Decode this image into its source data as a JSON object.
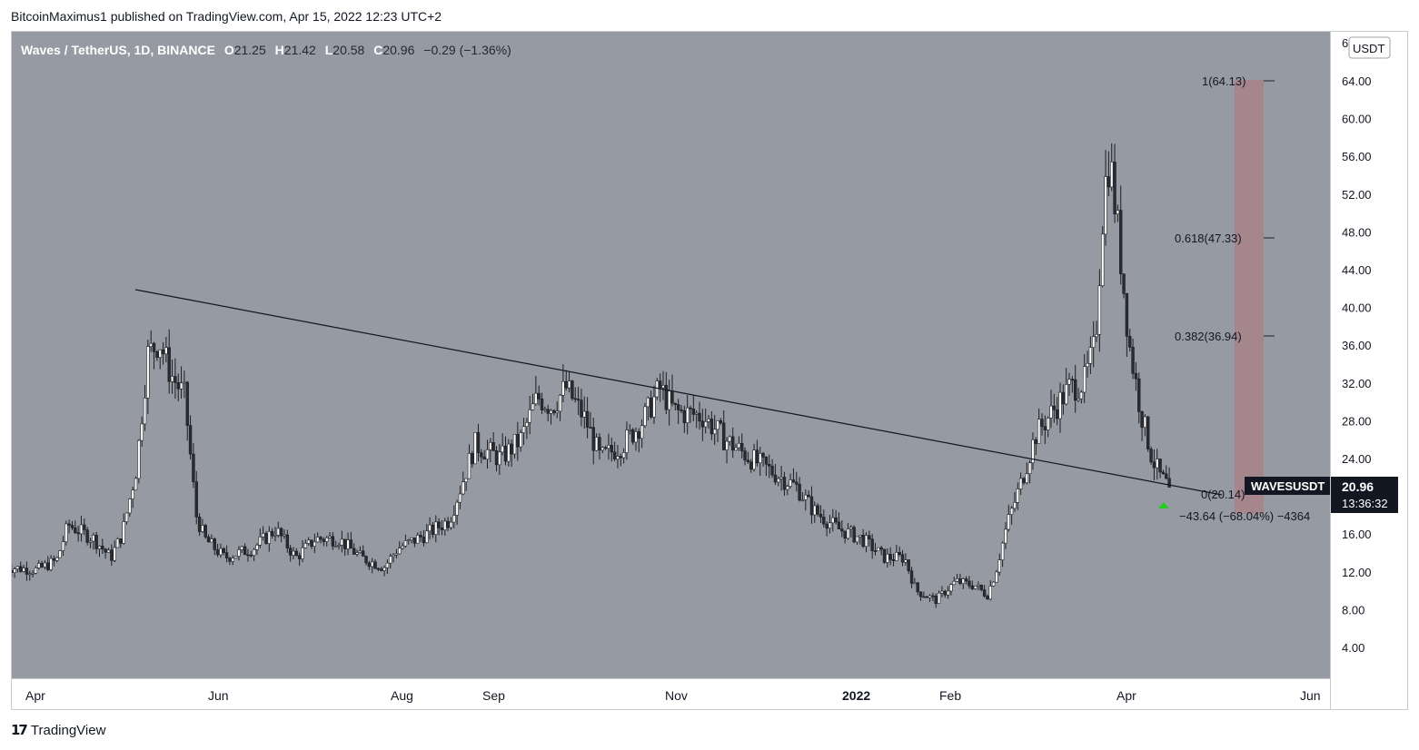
{
  "header": {
    "published_text": "BitcoinMaximus1 published on TradingView.com, Apr 15, 2022 12:23 UTC+2"
  },
  "footer": {
    "brand": "TradingView"
  },
  "legend": {
    "symbol": "Waves / TetherUS, 1D, BINANCE",
    "o_label": "O",
    "o_value": "21.25",
    "h_label": "H",
    "h_value": "21.42",
    "l_label": "L",
    "l_value": "20.58",
    "c_label": "C",
    "c_value": "20.96",
    "change": "−0.29 (−1.36%)"
  },
  "price_scale": {
    "currency": "USDT",
    "top_partial": "6",
    "ticks": [
      "64.00",
      "60.00",
      "56.00",
      "52.00",
      "48.00",
      "44.00",
      "40.00",
      "36.00",
      "32.00",
      "28.00",
      "24.00",
      "20.00",
      "16.00",
      "12.00",
      "8.00",
      "4.00"
    ]
  },
  "time_axis": {
    "ticks": [
      "Apr",
      "Jun",
      "Aug",
      "Sep",
      "Nov",
      "2022",
      "Feb",
      "Apr",
      "Jun"
    ]
  },
  "current_price": {
    "label": "WAVESUSDT",
    "value": "20.96",
    "countdown": "13:36:32"
  },
  "fib_labels": [
    "1(64.13)",
    "0.618(47.33)",
    "0.382(36.94)",
    "0(20.14)"
  ],
  "measure_label": "−43.64 (−68.04%) −4364",
  "colors": {
    "chart_bg": "#969aa3",
    "candle_body": "#ffffff",
    "candle_wick": "#1e1f24",
    "trendline": "#131722",
    "target_box": "#a6858c",
    "arrow": "#22cc22",
    "price_tag_bg": "#131722"
  },
  "chart_data": {
    "type": "candlestick",
    "title": "Waves / TetherUS, 1D, BINANCE",
    "ylim": [
      0,
      68
    ],
    "grid": false,
    "close_path": [
      [
        "2021-03-25",
        12.5
      ],
      [
        "2021-04-05",
        12.2
      ],
      [
        "2021-04-12",
        13.2
      ],
      [
        "2021-04-16",
        17.0
      ],
      [
        "2021-04-25",
        15.5
      ],
      [
        "2021-05-01",
        13.5
      ],
      [
        "2021-05-05",
        16.0
      ],
      [
        "2021-05-10",
        23.0
      ],
      [
        "2021-05-14",
        35.0
      ],
      [
        "2021-05-18",
        36.5
      ],
      [
        "2021-05-22",
        33.0
      ],
      [
        "2021-05-27",
        30.5
      ],
      [
        "2021-05-31",
        18.0
      ],
      [
        "2021-06-03",
        15.5
      ],
      [
        "2021-06-10",
        13.5
      ],
      [
        "2021-06-20",
        14.5
      ],
      [
        "2021-06-28",
        16.5
      ],
      [
        "2021-07-05",
        13.5
      ],
      [
        "2021-07-12",
        15.5
      ],
      [
        "2021-07-20",
        15.5
      ],
      [
        "2021-07-28",
        13.5
      ],
      [
        "2021-08-05",
        12.5
      ],
      [
        "2021-08-10",
        14.5
      ],
      [
        "2021-08-20",
        16.0
      ],
      [
        "2021-08-28",
        17.5
      ],
      [
        "2021-09-01",
        21.0
      ],
      [
        "2021-09-06",
        25.5
      ],
      [
        "2021-09-15",
        24.0
      ],
      [
        "2021-09-22",
        26.0
      ],
      [
        "2021-09-28",
        30.5
      ],
      [
        "2021-10-03",
        29.5
      ],
      [
        "2021-10-08",
        31.5
      ],
      [
        "2021-10-15",
        28.0
      ],
      [
        "2021-10-20",
        24.0
      ],
      [
        "2021-10-28",
        25.5
      ],
      [
        "2021-11-04",
        28.0
      ],
      [
        "2021-11-10",
        31.5
      ],
      [
        "2021-11-15",
        29.0
      ],
      [
        "2021-11-25",
        28.5
      ],
      [
        "2021-12-03",
        26.0
      ],
      [
        "2021-12-12",
        24.0
      ],
      [
        "2021-12-20",
        22.5
      ],
      [
        "2021-12-28",
        21.0
      ],
      [
        "2022-01-03",
        18.5
      ],
      [
        "2022-01-12",
        16.5
      ],
      [
        "2022-01-20",
        15.5
      ],
      [
        "2022-01-28",
        13.5
      ],
      [
        "2022-02-04",
        13.5
      ],
      [
        "2022-02-08",
        10.0
      ],
      [
        "2022-02-15",
        9.0
      ],
      [
        "2022-02-22",
        11.0
      ],
      [
        "2022-03-01",
        10.5
      ],
      [
        "2022-03-05",
        9.5
      ],
      [
        "2022-03-08",
        12.0
      ],
      [
        "2022-03-12",
        17.0
      ],
      [
        "2022-03-17",
        21.5
      ],
      [
        "2022-03-22",
        26.5
      ],
      [
        "2022-03-28",
        29.0
      ],
      [
        "2022-04-03",
        31.5
      ],
      [
        "2022-04-08",
        32.0
      ],
      [
        "2022-04-12",
        36.0
      ],
      [
        "2022-04-15",
        52.0
      ],
      [
        "2022-04-17",
        56.0
      ],
      [
        "2022-04-20",
        48.0
      ],
      [
        "2022-04-24",
        36.0
      ],
      [
        "2022-04-28",
        29.0
      ],
      [
        "2022-05-02",
        24.0
      ],
      [
        "2022-05-05",
        22.0
      ],
      [
        "2022-05-08",
        20.96
      ]
    ],
    "trendline": [
      [
        "2021-05-15",
        42.0
      ],
      [
        "2022-05-20",
        19.5
      ]
    ],
    "fib_levels": [
      {
        "ratio": 1,
        "value": 64.13
      },
      {
        "ratio": 0.618,
        "value": 47.33
      },
      {
        "ratio": 0.382,
        "value": 36.94
      },
      {
        "ratio": 0,
        "value": 20.14
      }
    ],
    "target_zone": {
      "from": 20.14,
      "to": 64.13
    },
    "last_close": 20.96
  }
}
